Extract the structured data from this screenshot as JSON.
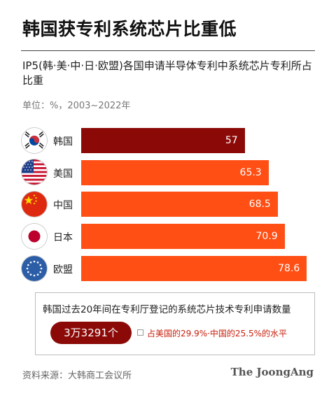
{
  "header": {
    "title": "韩国获专利系统芯片比重低",
    "subtitle": "IP5(韩·美·中·日·欧盟)各国申请半导体专利中系统芯片专利所占比重",
    "unit": "单位：%，2003~2022年"
  },
  "chart_data": {
    "type": "bar",
    "orientation": "horizontal",
    "categories": [
      "韩国",
      "美国",
      "中国",
      "日本",
      "欧盟"
    ],
    "values": [
      57,
      65.3,
      68.5,
      70.9,
      78.6
    ],
    "value_labels": [
      "57",
      "65.3",
      "68.5",
      "70.9",
      "78.6"
    ],
    "xlim": [
      0,
      80
    ],
    "grid": false,
    "colors": {
      "highlight": "#8b0a08",
      "default": "#ff4f14"
    },
    "highlight_index": 0,
    "flag_icons": [
      "korea-flag-icon",
      "usa-flag-icon",
      "china-flag-icon",
      "japan-flag-icon",
      "eu-flag-icon"
    ]
  },
  "callout": {
    "heading": "韩国过去20年间在专利厅登记的系统芯片技术专利申请数量",
    "count": "3万3291个",
    "note": "占美国的29.9%·中国的25.5%的水平"
  },
  "footer": {
    "source": "资料来源：大韩商工会议所",
    "logo": "The JoongAng"
  }
}
